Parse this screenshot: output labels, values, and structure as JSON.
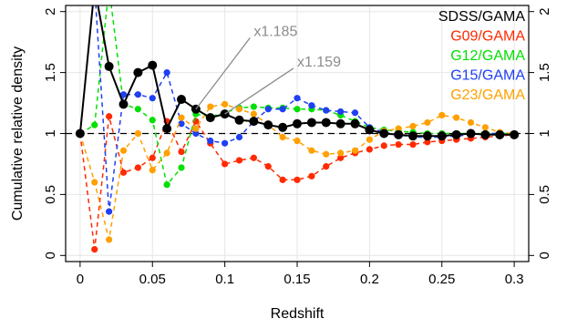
{
  "chart_data": {
    "type": "line",
    "xlabel": "Redshift",
    "ylabel": "Cumulative relative density",
    "xlim": [
      -0.01,
      0.31
    ],
    "ylim": [
      -0.05,
      2.05
    ],
    "xticks": [
      0,
      0.05,
      0.1,
      0.15,
      0.2,
      0.25,
      0.3
    ],
    "xtick_labels": [
      "0",
      "0.05",
      "0.1",
      "0.15",
      "0.2",
      "0.25",
      "0.3"
    ],
    "yticks": [
      0,
      0.5,
      1,
      1.5,
      2
    ],
    "ytick_labels": [
      "0",
      "0.5",
      "1",
      "1.5",
      "2"
    ],
    "right_axis": true,
    "grid": true,
    "reference_line": 1,
    "legend_position": "top-right",
    "x": [
      0,
      0.01,
      0.02,
      0.03,
      0.04,
      0.05,
      0.06,
      0.07,
      0.08,
      0.09,
      0.1,
      0.11,
      0.12,
      0.13,
      0.14,
      0.15,
      0.16,
      0.17,
      0.18,
      0.19,
      0.2,
      0.21,
      0.22,
      0.23,
      0.24,
      0.25,
      0.26,
      0.27,
      0.28,
      0.29,
      0.3
    ],
    "series": [
      {
        "name": "SDSS/GAMA",
        "color": "#000000",
        "linestyle": "solid",
        "values": [
          1.0,
          2.2,
          1.55,
          1.24,
          1.5,
          1.56,
          1.04,
          1.28,
          1.2,
          1.13,
          1.16,
          1.11,
          1.1,
          1.07,
          1.05,
          1.08,
          1.09,
          1.09,
          1.08,
          1.08,
          1.03,
          1.0,
          0.99,
          0.98,
          0.98,
          0.98,
          0.99,
          1.0,
          0.99,
          0.99,
          0.99
        ]
      },
      {
        "name": "G09/GAMA",
        "color": "#ff2a00",
        "linestyle": "dashed",
        "values": [
          1.0,
          0.05,
          1.14,
          0.68,
          0.72,
          0.8,
          1.1,
          0.85,
          1.1,
          0.92,
          0.75,
          0.78,
          0.8,
          0.73,
          0.62,
          0.62,
          0.65,
          0.73,
          0.8,
          0.84,
          0.87,
          0.9,
          0.91,
          0.91,
          0.93,
          0.94,
          0.95,
          0.96,
          0.97,
          0.98,
          0.99
        ]
      },
      {
        "name": "G12/GAMA",
        "color": "#00e000",
        "linestyle": "dashed",
        "values": [
          1.0,
          1.07,
          2.2,
          1.24,
          1.2,
          1.11,
          0.58,
          0.72,
          1.16,
          1.14,
          1.17,
          1.21,
          1.22,
          1.21,
          1.21,
          1.2,
          1.2,
          1.19,
          1.15,
          1.1,
          1.05,
          1.03,
          1.02,
          1.01,
          1.0,
          1.0,
          1.0,
          1.0,
          1.0,
          1.0,
          1.0
        ]
      },
      {
        "name": "G15/GAMA",
        "color": "#1f3ff2",
        "linestyle": "dashed",
        "values": [
          1.0,
          2.2,
          0.36,
          1.32,
          1.32,
          1.29,
          1.5,
          1.08,
          1.0,
          0.94,
          0.92,
          0.97,
          1.1,
          1.2,
          1.2,
          1.29,
          1.23,
          1.19,
          1.18,
          1.17,
          1.05,
          1.01,
          0.99,
          0.97,
          0.97,
          0.97,
          0.98,
          0.99,
          1.0,
          1.0,
          1.0
        ]
      },
      {
        "name": "G23/GAMA",
        "color": "#ffa000",
        "linestyle": "dashed",
        "values": [
          1.0,
          0.6,
          0.13,
          0.86,
          1.0,
          0.7,
          0.84,
          1.13,
          1.04,
          1.22,
          1.24,
          1.2,
          1.16,
          1.07,
          0.97,
          0.94,
          0.86,
          0.83,
          0.84,
          0.86,
          0.95,
          1.02,
          1.04,
          1.06,
          1.09,
          1.15,
          1.13,
          1.09,
          1.05,
          1.01,
          1.0
        ]
      }
    ],
    "annotations": [
      {
        "text": "x1.185",
        "point": [
          0.08,
          1.2
        ],
        "text_pos": [
          0.125,
          1.8
        ]
      },
      {
        "text": "x1.159",
        "point": [
          0.1,
          1.16
        ],
        "text_pos": [
          0.155,
          1.55
        ]
      }
    ]
  }
}
